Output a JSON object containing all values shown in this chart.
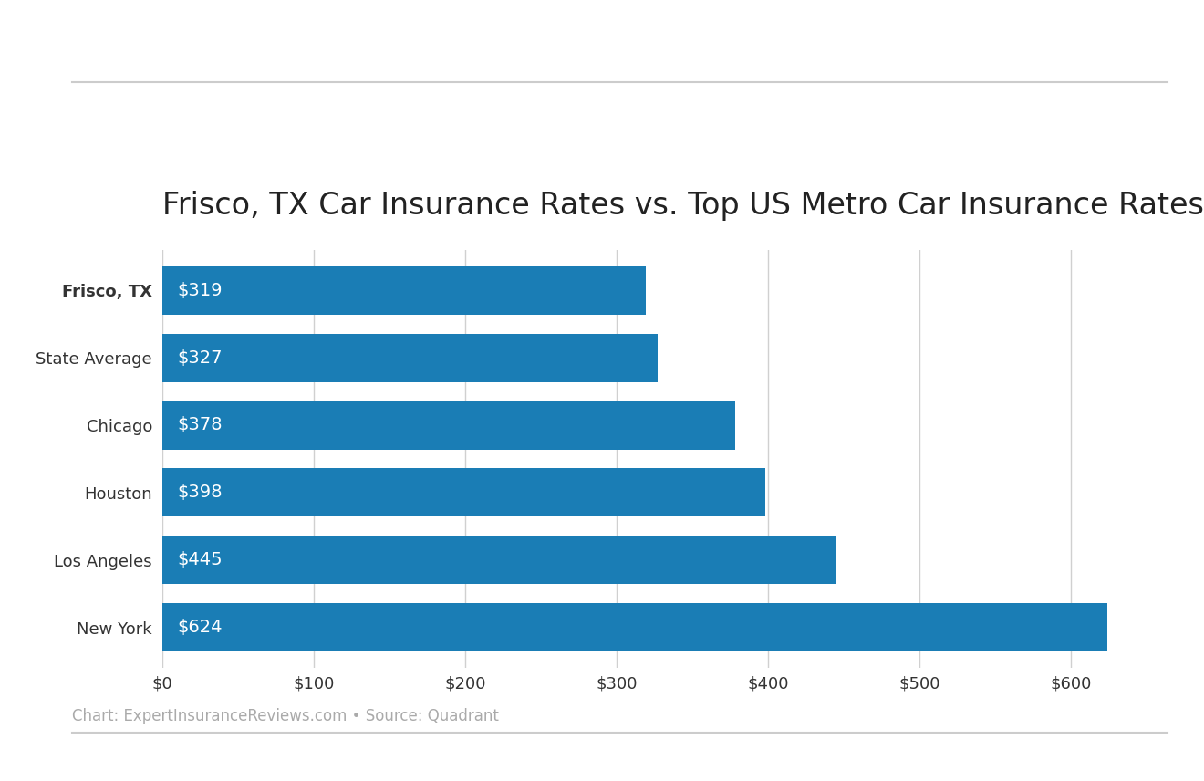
{
  "title": "Frisco, TX Car Insurance Rates vs. Top US Metro Car Insurance Rates",
  "categories": [
    "Frisco, TX",
    "State Average",
    "Chicago",
    "Houston",
    "Los Angeles",
    "New York"
  ],
  "values": [
    319,
    327,
    378,
    398,
    445,
    624
  ],
  "bar_color": "#1a7db5",
  "label_color": "#ffffff",
  "title_fontsize": 24,
  "label_fontsize": 14,
  "tick_fontsize": 13,
  "footer_text": "Chart: ExpertInsuranceReviews.com • Source: Quadrant",
  "footer_fontsize": 12,
  "footer_color": "#aaaaaa",
  "xlim": [
    0,
    660
  ],
  "xtick_values": [
    0,
    100,
    200,
    300,
    400,
    500,
    600
  ],
  "background_color": "#ffffff",
  "bar_height": 0.72,
  "grid_color": "#d0d0d0",
  "axis_label_color": "#333333",
  "separator_color": "#cccccc",
  "separator_linewidth": 1.5
}
